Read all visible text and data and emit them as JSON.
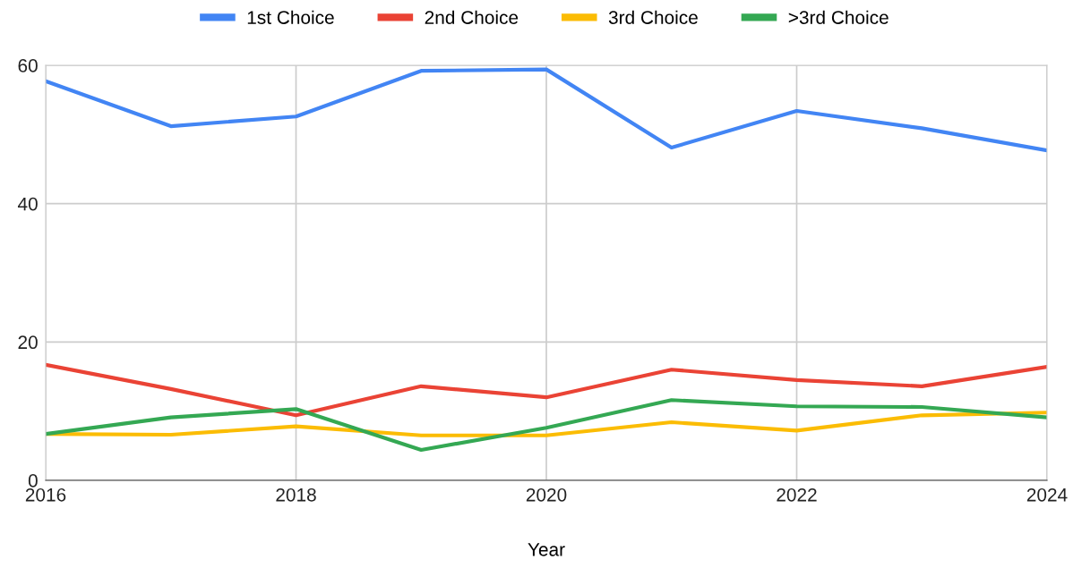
{
  "chart_data": {
    "type": "line",
    "xlabel": "Year",
    "x": [
      2016,
      2017,
      2018,
      2019,
      2020,
      2021,
      2022,
      2023,
      2024
    ],
    "series": [
      {
        "name": "1st Choice",
        "color": "#4285f4",
        "values": [
          57.7,
          51.2,
          52.6,
          59.2,
          59.4,
          48.1,
          53.4,
          50.9,
          47.7
        ]
      },
      {
        "name": "2nd Choice",
        "color": "#ea4335",
        "values": [
          16.7,
          13.2,
          9.4,
          13.6,
          12.0,
          16.0,
          14.5,
          13.6,
          16.4
        ]
      },
      {
        "name": "3rd Choice",
        "color": "#fbbc04",
        "values": [
          6.7,
          6.6,
          7.8,
          6.5,
          6.5,
          8.4,
          7.2,
          9.4,
          9.8
        ]
      },
      {
        "name": ">3rd Choice",
        "color": "#34a853",
        "values": [
          6.7,
          9.1,
          10.3,
          4.4,
          7.6,
          11.6,
          10.7,
          10.6,
          9.1
        ]
      }
    ],
    "xlim": [
      2016,
      2024
    ],
    "xticks": [
      2016,
      2018,
      2020,
      2022,
      2024
    ],
    "ylim": [
      0,
      60
    ],
    "yticks": [
      0,
      20,
      40,
      60
    ],
    "grid": true,
    "legend": "top",
    "marker": "none",
    "line_style": "solid"
  }
}
